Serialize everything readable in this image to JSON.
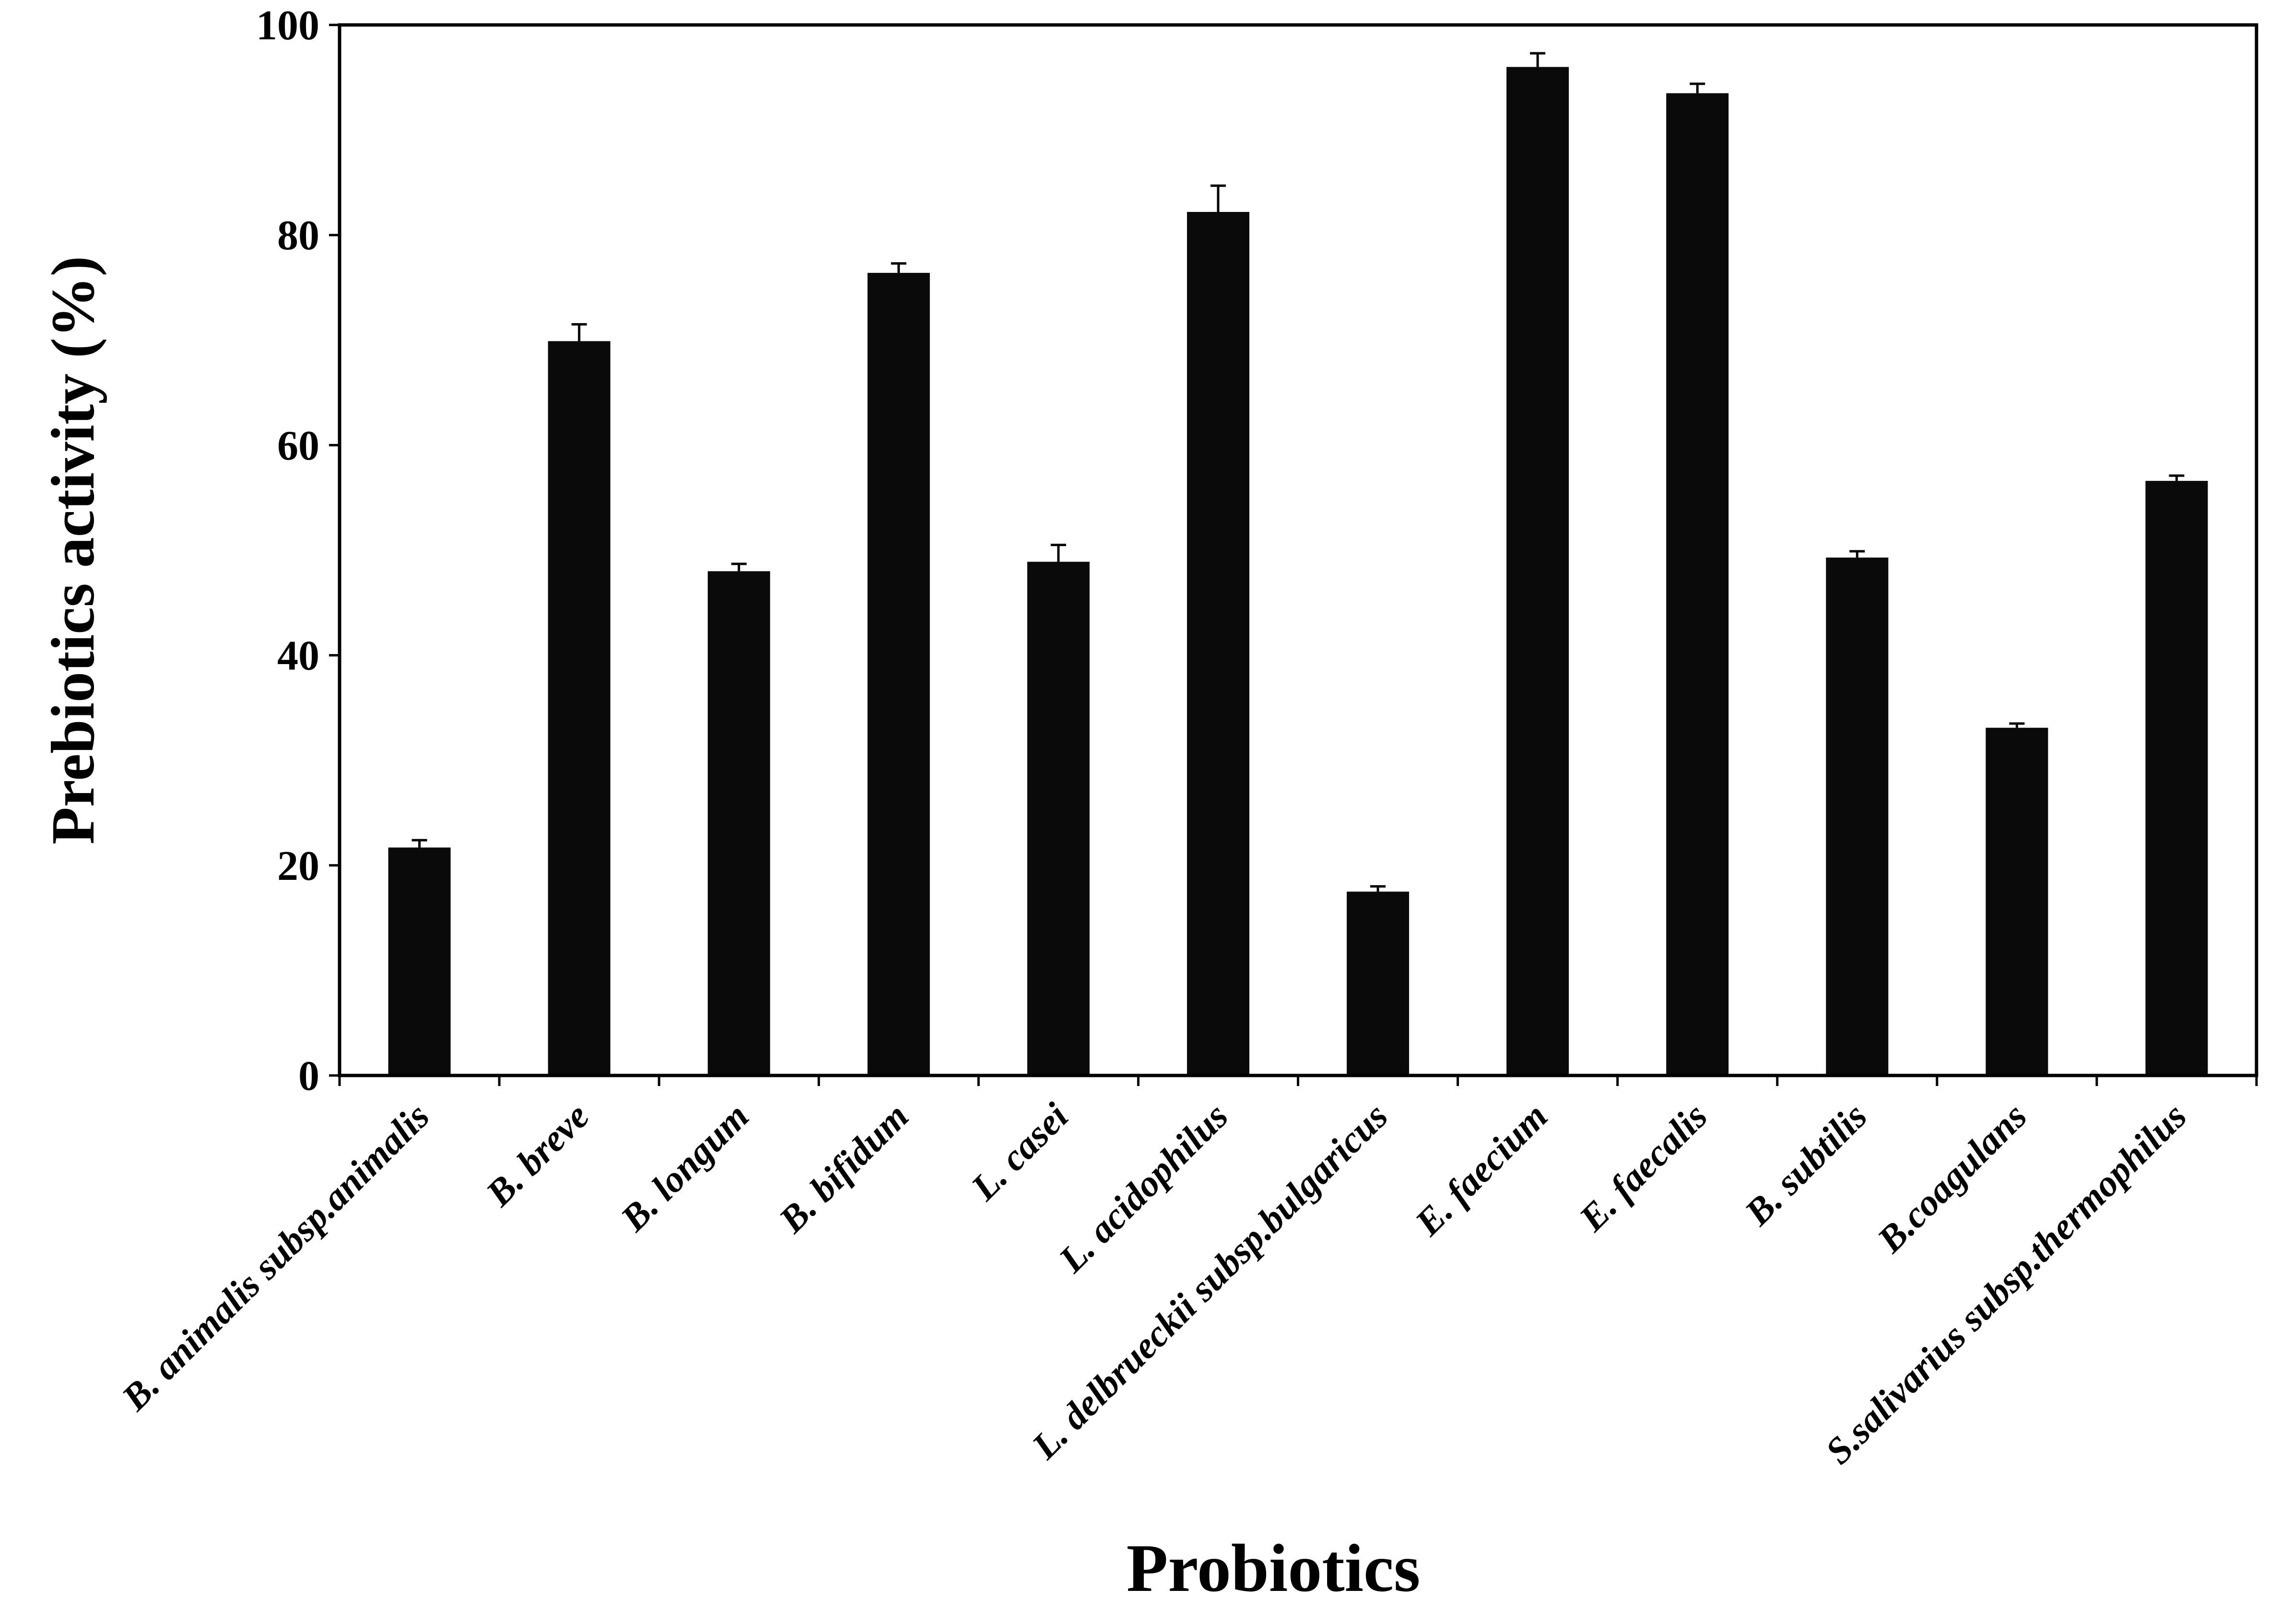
{
  "chart_data": {
    "type": "bar",
    "title": "",
    "xlabel": "Probiotics",
    "ylabel": "Prebiotics activity (%)",
    "ylim": [
      0,
      100
    ],
    "yticks": [
      "0",
      "20",
      "40",
      "60",
      "80",
      "100"
    ],
    "grid": false,
    "legend": "none",
    "bar_color": "#0a0a0a",
    "categories": [
      "B. animalis subsp.animalis",
      "B. breve",
      "B. longum",
      "B. bifidum",
      "L. casei",
      "L. acidophilus",
      "L. delbrueckii subsp.bulgaricus",
      "E. faecium",
      "E. faecalis",
      "B. subtilis",
      "B.coagulans",
      "S.salivarius subsp.thermophilus"
    ],
    "values": [
      21.7,
      69.9,
      48.0,
      76.4,
      48.9,
      82.2,
      17.5,
      96.0,
      93.5,
      49.3,
      33.1,
      56.6
    ],
    "errors": [
      0.7,
      1.6,
      0.7,
      0.9,
      1.6,
      2.5,
      0.5,
      1.3,
      0.9,
      0.6,
      0.4,
      0.5
    ]
  }
}
